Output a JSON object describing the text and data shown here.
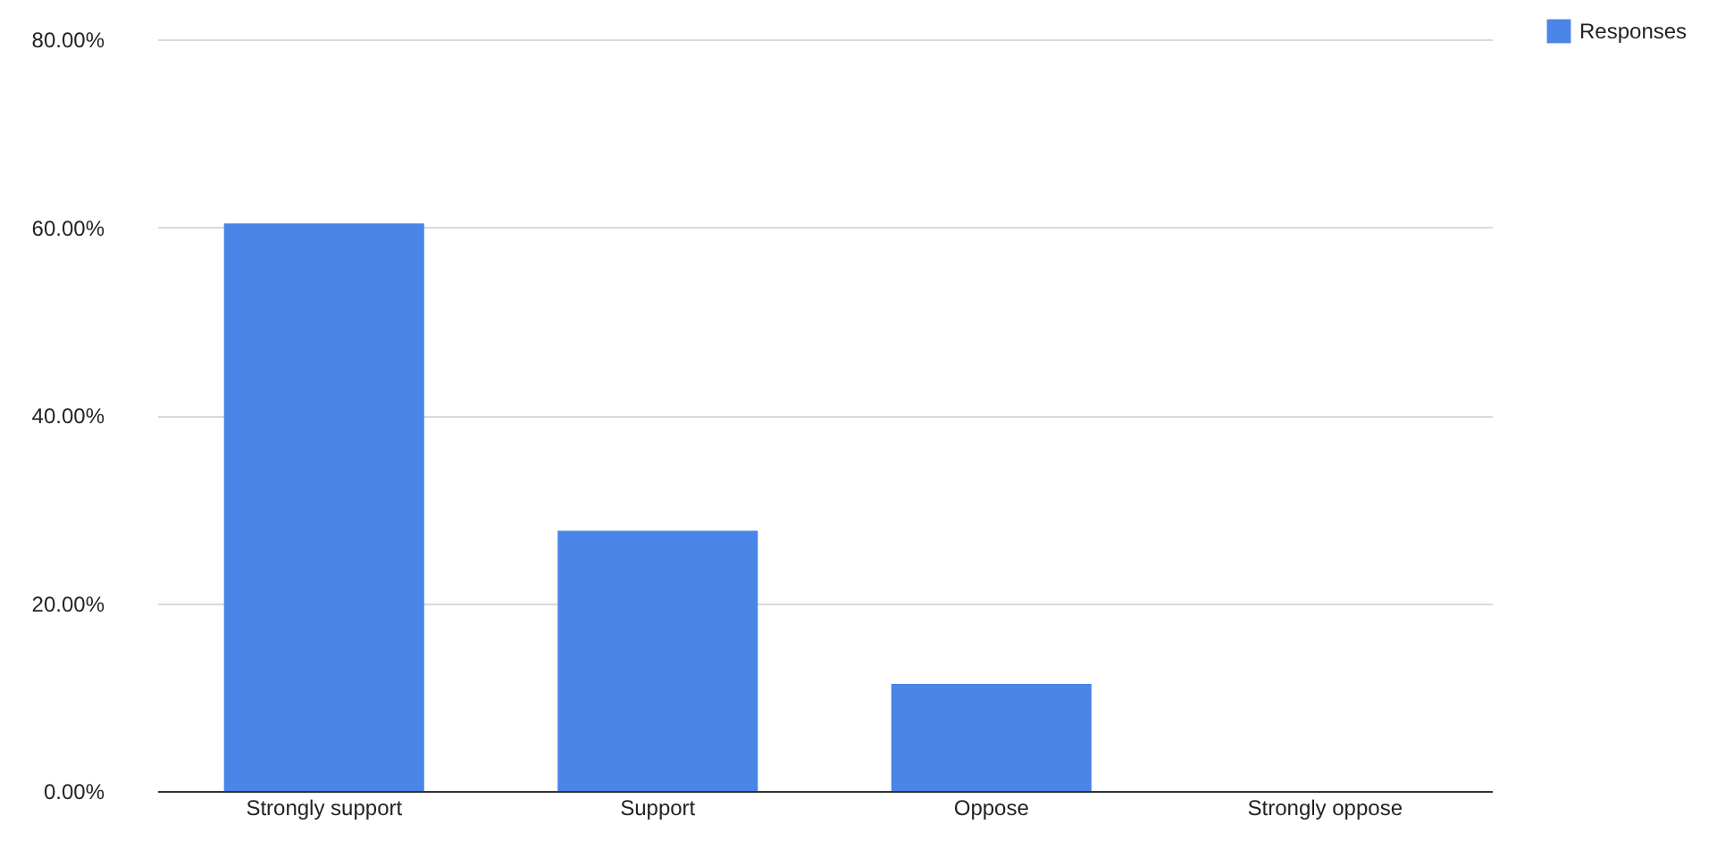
{
  "chart_data": {
    "type": "bar",
    "categories": [
      "Strongly support",
      "Support",
      "Oppose",
      "Strongly oppose"
    ],
    "series": [
      {
        "name": "Responses",
        "color": "#4a86e8",
        "values": [
          60.4,
          27.7,
          11.4,
          0
        ]
      }
    ],
    "ylim": [
      0,
      80
    ],
    "yticks": [
      {
        "value": 0,
        "label": "0.00%"
      },
      {
        "value": 20,
        "label": "20.00%"
      },
      {
        "value": 40,
        "label": "40.00%"
      },
      {
        "value": 60,
        "label": "60.00%"
      },
      {
        "value": 80,
        "label": "80.00%"
      }
    ],
    "grid": "y",
    "legend": "top right"
  }
}
